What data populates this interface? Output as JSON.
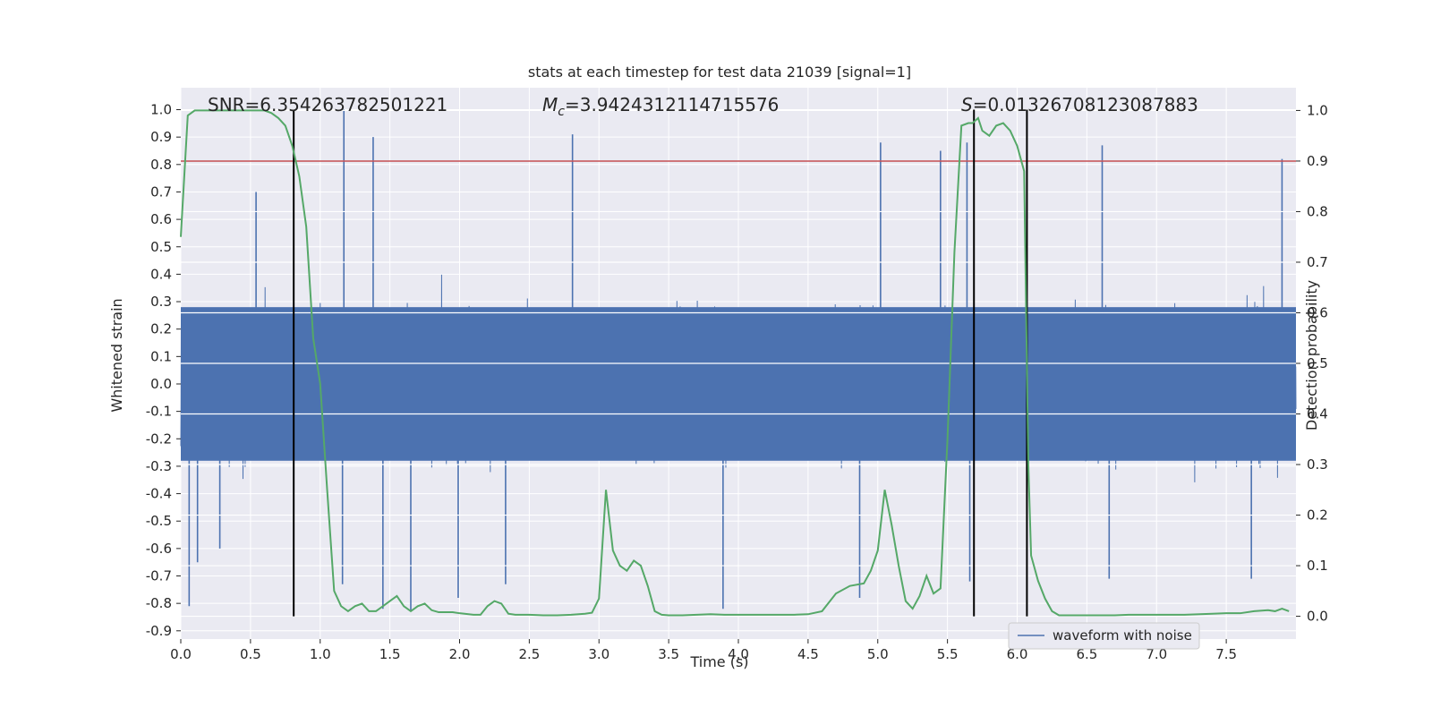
{
  "chart_data": {
    "type": "line",
    "title": "stats at each timestep for test data 21039 [signal=1]",
    "xlabel": "Time (s)",
    "ylabel_left": "Whitened strain",
    "ylabel_right": "Detection probability",
    "xlim": [
      0,
      8
    ],
    "ylim_left": [
      -0.93,
      1.08
    ],
    "ylim_right": [
      -0.045,
      1.045
    ],
    "x_ticks": [
      "0.0",
      "0.5",
      "1.0",
      "1.5",
      "2.0",
      "2.5",
      "3.0",
      "3.5",
      "4.0",
      "4.5",
      "5.0",
      "5.5",
      "6.0",
      "6.5",
      "7.0",
      "7.5"
    ],
    "left_ticks": [
      "1.0",
      "0.9",
      "0.8",
      "0.7",
      "0.6",
      "0.5",
      "0.4",
      "0.3",
      "0.2",
      "0.1",
      "0.0",
      "-0.1",
      "-0.2",
      "-0.3",
      "-0.4",
      "-0.5",
      "-0.6",
      "-0.7",
      "-0.8",
      "-0.9"
    ],
    "right_ticks": [
      "1.0",
      "0.9",
      "0.8",
      "0.7",
      "0.6",
      "0.5",
      "0.4",
      "0.3",
      "0.2",
      "0.1",
      "0.0"
    ],
    "grid": true,
    "legend_position": "lower-right",
    "annotations": {
      "snr": "SNR=6.354263782501221",
      "mc_symbol": "M",
      "mc_sub": "c",
      "mc_value": "=3.9424312114715576",
      "s_symbol": "S",
      "s_value": "=0.01326708123087883"
    },
    "series": [
      {
        "name": "waveform with noise",
        "axis": "left",
        "color": "#4c72b0",
        "description_values": {
          "noise_band_low": -0.28,
          "noise_band_high": 0.28,
          "typical_peak_low": -0.62,
          "typical_peak_high": 0.62
        },
        "spikes": [
          {
            "x": 0.06,
            "y": -0.81
          },
          {
            "x": 0.12,
            "y": -0.65
          },
          {
            "x": 0.28,
            "y": -0.6
          },
          {
            "x": 0.54,
            "y": 0.7
          },
          {
            "x": 1.17,
            "y": 1.0
          },
          {
            "x": 1.16,
            "y": -0.73
          },
          {
            "x": 1.38,
            "y": 0.9
          },
          {
            "x": 1.45,
            "y": -0.82
          },
          {
            "x": 1.65,
            "y": -0.83
          },
          {
            "x": 1.99,
            "y": -0.78
          },
          {
            "x": 2.33,
            "y": -0.73
          },
          {
            "x": 2.81,
            "y": 0.91
          },
          {
            "x": 3.89,
            "y": -0.82
          },
          {
            "x": 4.87,
            "y": -0.78
          },
          {
            "x": 5.02,
            "y": 0.88
          },
          {
            "x": 5.45,
            "y": 0.85
          },
          {
            "x": 5.64,
            "y": 0.88
          },
          {
            "x": 5.66,
            "y": -0.72
          },
          {
            "x": 6.61,
            "y": 0.87
          },
          {
            "x": 6.66,
            "y": -0.71
          },
          {
            "x": 7.68,
            "y": -0.71
          },
          {
            "x": 7.9,
            "y": 0.82
          }
        ]
      },
      {
        "name": "detection probability",
        "axis": "right",
        "color": "#55a868",
        "x": [
          0,
          0.05,
          0.1,
          0.2,
          0.4,
          0.6,
          0.65,
          0.7,
          0.75,
          0.8,
          0.85,
          0.9,
          0.95,
          1.0,
          1.05,
          1.1,
          1.15,
          1.2,
          1.25,
          1.3,
          1.35,
          1.4,
          1.45,
          1.5,
          1.55,
          1.6,
          1.65,
          1.7,
          1.75,
          1.8,
          1.85,
          1.9,
          1.95,
          2.0,
          2.1,
          2.15,
          2.2,
          2.25,
          2.3,
          2.35,
          2.4,
          2.5,
          2.6,
          2.7,
          2.8,
          2.9,
          2.95,
          3.0,
          3.05,
          3.1,
          3.15,
          3.2,
          3.25,
          3.3,
          3.35,
          3.4,
          3.45,
          3.5,
          3.6,
          3.7,
          3.8,
          3.9,
          4.0,
          4.1,
          4.2,
          4.3,
          4.4,
          4.5,
          4.6,
          4.7,
          4.8,
          4.9,
          4.95,
          5.0,
          5.05,
          5.1,
          5.15,
          5.2,
          5.25,
          5.3,
          5.35,
          5.4,
          5.45,
          5.5,
          5.55,
          5.6,
          5.65,
          5.68,
          5.72,
          5.75,
          5.8,
          5.85,
          5.9,
          5.95,
          6.0,
          6.05,
          6.08,
          6.1,
          6.15,
          6.2,
          6.25,
          6.3,
          6.35,
          6.4,
          6.5,
          6.6,
          6.7,
          6.8,
          6.9,
          7.0,
          7.2,
          7.4,
          7.5,
          7.6,
          7.7,
          7.8,
          7.85,
          7.9,
          7.95
        ],
        "y": [
          0.75,
          0.99,
          1.0,
          1.0,
          1.0,
          1.0,
          0.995,
          0.985,
          0.97,
          0.93,
          0.87,
          0.77,
          0.55,
          0.46,
          0.25,
          0.05,
          0.02,
          0.01,
          0.02,
          0.025,
          0.01,
          0.01,
          0.02,
          0.03,
          0.04,
          0.02,
          0.01,
          0.02,
          0.025,
          0.012,
          0.008,
          0.008,
          0.008,
          0.006,
          0.003,
          0.003,
          0.02,
          0.03,
          0.025,
          0.005,
          0.003,
          0.003,
          0.002,
          0.002,
          0.003,
          0.005,
          0.007,
          0.035,
          0.25,
          0.13,
          0.1,
          0.09,
          0.11,
          0.1,
          0.06,
          0.01,
          0.003,
          0.002,
          0.002,
          0.003,
          0.004,
          0.003,
          0.003,
          0.003,
          0.003,
          0.003,
          0.003,
          0.004,
          0.01,
          0.045,
          0.06,
          0.065,
          0.09,
          0.13,
          0.25,
          0.18,
          0.1,
          0.03,
          0.015,
          0.04,
          0.08,
          0.045,
          0.055,
          0.35,
          0.72,
          0.97,
          0.975,
          0.975,
          0.985,
          0.96,
          0.95,
          0.97,
          0.975,
          0.96,
          0.93,
          0.88,
          0.3,
          0.12,
          0.07,
          0.035,
          0.01,
          0.002,
          0.002,
          0.002,
          0.002,
          0.002,
          0.002,
          0.003,
          0.003,
          0.003,
          0.003,
          0.005,
          0.006,
          0.006,
          0.01,
          0.012,
          0.01,
          0.015,
          0.01
        ]
      }
    ],
    "threshold": {
      "axis": "right",
      "value": 0.9,
      "color": "#c44e52"
    },
    "vertical_lines": [
      {
        "x": 0.81,
        "color": "#000000"
      },
      {
        "x": 5.69,
        "color": "#000000"
      },
      {
        "x": 6.07,
        "color": "#000000"
      }
    ],
    "legend": {
      "label": "waveform with noise"
    }
  }
}
